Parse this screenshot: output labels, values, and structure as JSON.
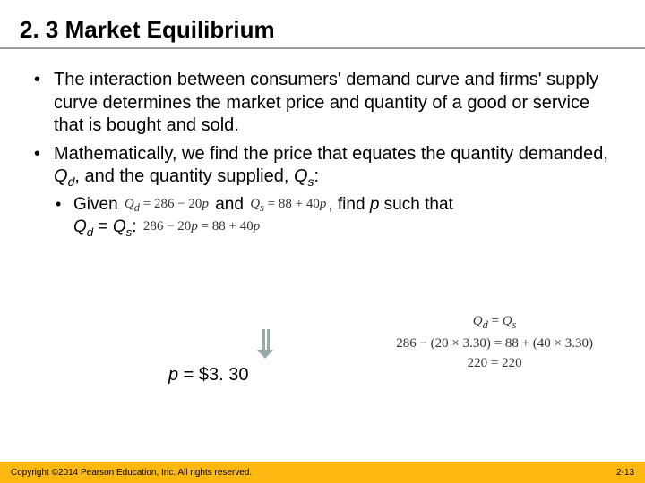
{
  "title": "2. 3  Market Equilibrium",
  "bullets": {
    "b1": "The interaction between consumers' demand curve and firms' supply curve determines the market price and quantity of a good or service that is bought and sold.",
    "b2_pre": "Mathematically, we find the price that equates the quantity demanded, ",
    "b2_q1": "Q",
    "b2_q1s": "d",
    "b2_mid": ", and the quantity supplied, ",
    "b2_q2": "Q",
    "b2_q2s": "s",
    "b2_post": ":"
  },
  "given": {
    "pre": "Given ",
    "eq1": "Q_d = 286 − 20p",
    "and": " and ",
    "eq2": "Q_s = 88 + 40p",
    "mid": ", find ",
    "p": "p",
    "post": " such that",
    "line2_q1": "Q",
    "line2_q1s": "d",
    "line2_eq": " = ",
    "line2_q2": "Q",
    "line2_q2s": "s",
    "line2_colon": ": ",
    "solve": "286 − 20p = 88 + 40p"
  },
  "result": {
    "p": "p",
    "eq": " = $3. 30"
  },
  "right_eqs": {
    "l1": "Q_d = Q_s",
    "l2": "286 − (20 × 3.30) = 88 + (40 × 3.30)",
    "l3": "220 = 220"
  },
  "footer": {
    "copyright": "Copyright ©2014 Pearson Education, Inc. All rights reserved.",
    "pagenum": "2-13"
  },
  "colors": {
    "accent": "#fdb912",
    "underline": "#999999"
  }
}
